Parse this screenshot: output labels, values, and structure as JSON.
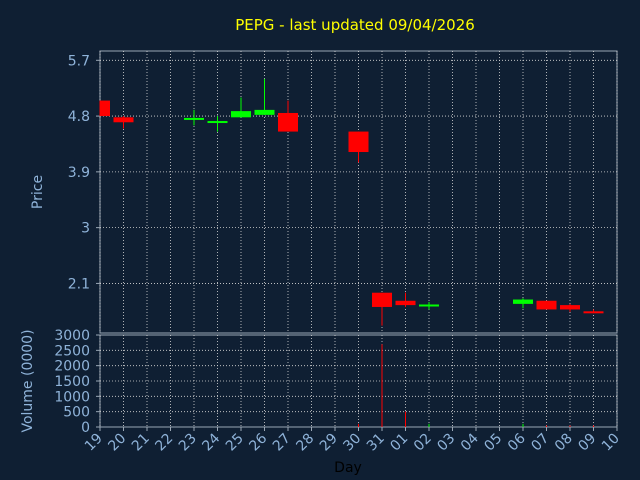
{
  "chart_data": {
    "type": "candlestick",
    "title": "PEPG - last updated 09/04/2026",
    "xlabel": "Day",
    "ylabel": "Price",
    "volume_label": "Volume (0000)",
    "x_ticks": [
      "19",
      "20",
      "21",
      "22",
      "23",
      "24",
      "25",
      "26",
      "27",
      "28",
      "29",
      "30",
      "31",
      "01",
      "02",
      "03",
      "04",
      "05",
      "06",
      "07",
      "08",
      "09",
      "10"
    ],
    "price_ticks": [
      "5.7",
      "4.8",
      "3.9",
      "3",
      "2.1"
    ],
    "price_range": [
      1.3,
      5.85
    ],
    "volume_ticks": [
      "3000",
      "2500",
      "2000",
      "1500",
      "1000",
      "500",
      "0"
    ],
    "volume_range": [
      0,
      3000
    ],
    "grid": true,
    "colors": {
      "up": "#00ff00",
      "down": "#ff0000",
      "background": "#0f1f33",
      "grid": "#d8d8d8",
      "title": "#ffff00",
      "ticks": "#8fb3d9"
    },
    "candles": [
      {
        "day": "19",
        "open": 5.05,
        "close": 4.8,
        "high": 5.05,
        "low": 4.8,
        "volume": 0
      },
      {
        "day": "20",
        "open": 4.78,
        "close": 4.7,
        "high": 4.8,
        "low": 4.6,
        "volume": 0
      },
      {
        "day": "23",
        "open": 4.74,
        "close": 4.77,
        "high": 4.9,
        "low": 4.65,
        "volume": 0
      },
      {
        "day": "24",
        "open": 4.7,
        "close": 4.72,
        "high": 4.8,
        "low": 4.55,
        "volume": 0
      },
      {
        "day": "25",
        "open": 4.78,
        "close": 4.88,
        "high": 5.1,
        "low": 4.78,
        "volume": 0
      },
      {
        "day": "26",
        "open": 4.82,
        "close": 4.9,
        "high": 5.4,
        "low": 4.82,
        "volume": 0
      },
      {
        "day": "27",
        "open": 4.85,
        "close": 4.55,
        "high": 5.05,
        "low": 4.55,
        "volume": 0
      },
      {
        "day": "30",
        "open": 4.55,
        "close": 4.22,
        "high": 4.55,
        "low": 4.05,
        "volume": 100
      },
      {
        "day": "31",
        "open": 1.95,
        "close": 1.72,
        "high": 1.95,
        "low": 1.42,
        "volume": 2700
      },
      {
        "day": "01",
        "open": 1.82,
        "close": 1.75,
        "high": 1.95,
        "low": 1.72,
        "volume": 500
      },
      {
        "day": "02",
        "open": 1.73,
        "close": 1.76,
        "high": 1.8,
        "low": 1.68,
        "volume": 100
      },
      {
        "day": "06",
        "open": 1.77,
        "close": 1.84,
        "high": 1.86,
        "low": 1.7,
        "volume": 100
      },
      {
        "day": "07",
        "open": 1.82,
        "close": 1.68,
        "high": 1.82,
        "low": 1.68,
        "volume": 50
      },
      {
        "day": "08",
        "open": 1.75,
        "close": 1.68,
        "high": 1.77,
        "low": 1.64,
        "volume": 50
      },
      {
        "day": "09",
        "open": 1.65,
        "close": 1.63,
        "high": 1.68,
        "low": 1.62,
        "volume": 50
      }
    ]
  }
}
